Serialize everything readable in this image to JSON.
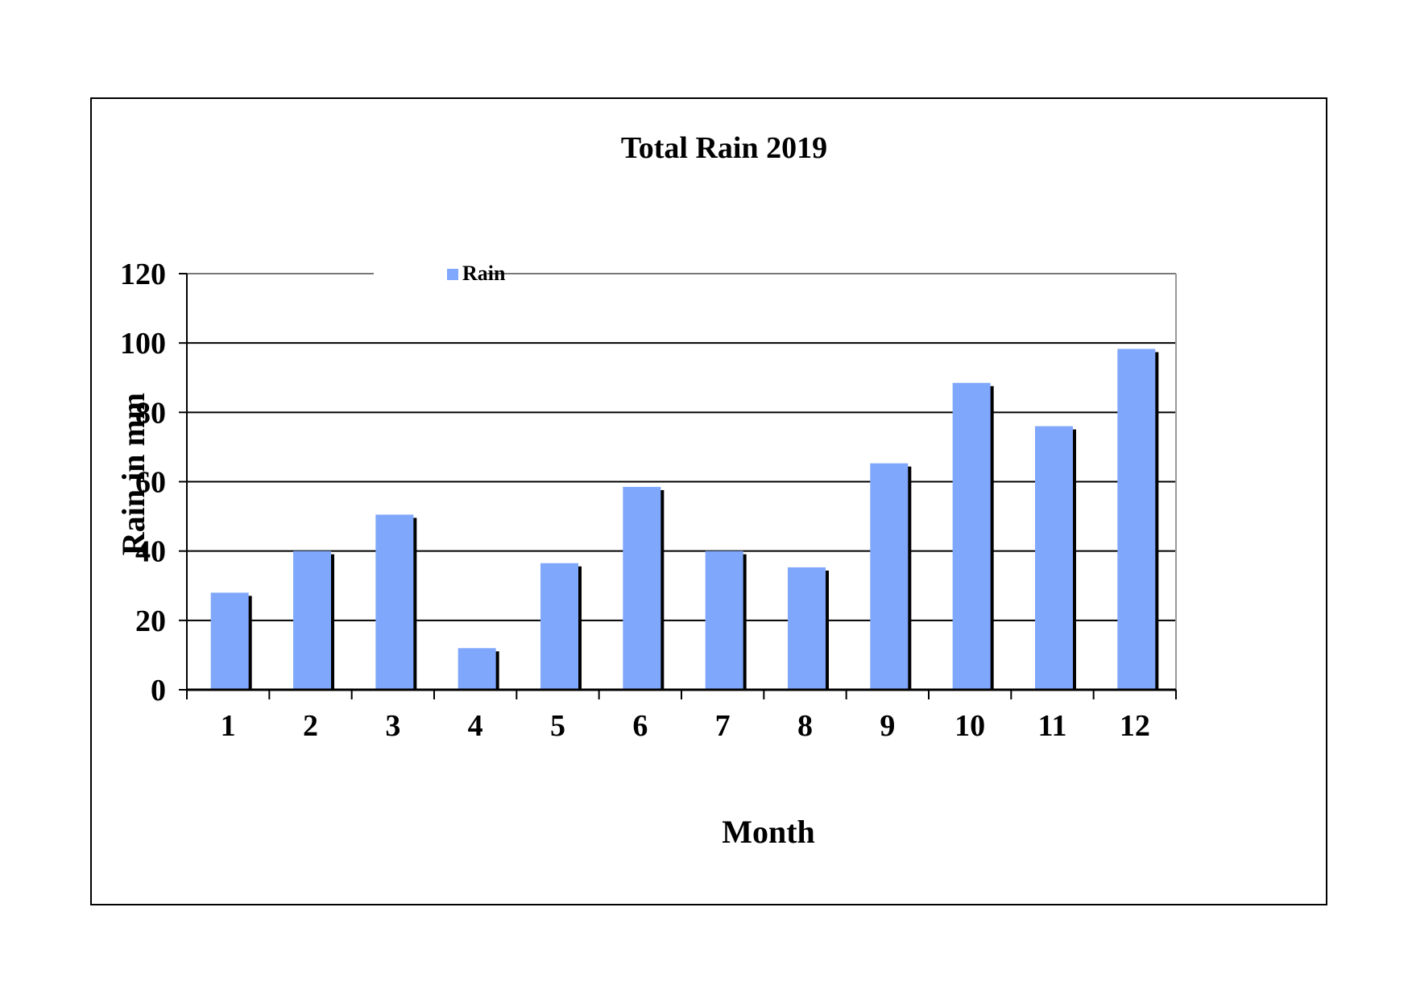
{
  "chart_data": {
    "type": "bar",
    "title": "Total Rain 2019",
    "xlabel": "Month",
    "ylabel": "Rain in mm",
    "categories": [
      "1",
      "2",
      "3",
      "4",
      "5",
      "6",
      "7",
      "8",
      "9",
      "10",
      "11",
      "12"
    ],
    "series": [
      {
        "name": "Rain",
        "values": [
          28,
          40,
          50.5,
          12,
          36.5,
          58.5,
          40,
          35.3,
          65.3,
          88.5,
          76,
          98.3
        ]
      }
    ],
    "ylim": [
      0,
      120
    ],
    "yticks": [
      "0",
      "20",
      "40",
      "60",
      "80",
      "100",
      "120"
    ],
    "grid": true,
    "legend_position": "top-left",
    "colors": {
      "bar": "#7fa7fb",
      "shadow": "#000000",
      "grid": "#000000",
      "frame": "#000000"
    }
  }
}
